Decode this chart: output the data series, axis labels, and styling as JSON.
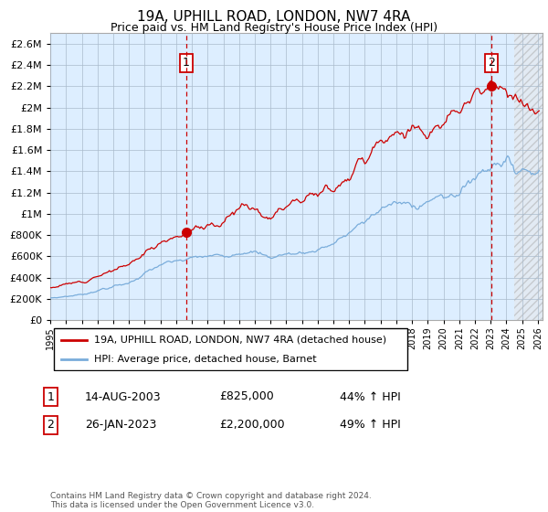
{
  "title": "19A, UPHILL ROAD, LONDON, NW7 4RA",
  "subtitle": "Price paid vs. HM Land Registry's House Price Index (HPI)",
  "legend_line1": "19A, UPHILL ROAD, LONDON, NW7 4RA (detached house)",
  "legend_line2": "HPI: Average price, detached house, Barnet",
  "sale1_date": "14-AUG-2003",
  "sale1_price": "£825,000",
  "sale1_hpi": "44% ↑ HPI",
  "sale2_date": "26-JAN-2023",
  "sale2_price": "£2,200,000",
  "sale2_hpi": "49% ↑ HPI",
  "footer": "Contains HM Land Registry data © Crown copyright and database right 2024.\nThis data is licensed under the Open Government Licence v3.0.",
  "hpi_color": "#7aaddb",
  "price_color": "#cc0000",
  "sale_marker_color": "#cc0000",
  "dashed_line_color": "#cc0000",
  "background_color": "#ffffff",
  "chart_bg_color": "#ddeeff",
  "grid_color": "#aabbcc",
  "yticks": [
    0,
    200000,
    400000,
    600000,
    800000,
    1000000,
    1200000,
    1400000,
    1600000,
    1800000,
    2000000,
    2200000,
    2400000,
    2600000
  ],
  "ylim": [
    0,
    2700000
  ],
  "xlim_start": 1995.0,
  "xlim_end": 2026.3,
  "sale1_x": 2003.62,
  "sale1_y": 825000,
  "sale2_x": 2023.07,
  "sale2_y": 2200000,
  "hatch_start": 2024.5
}
